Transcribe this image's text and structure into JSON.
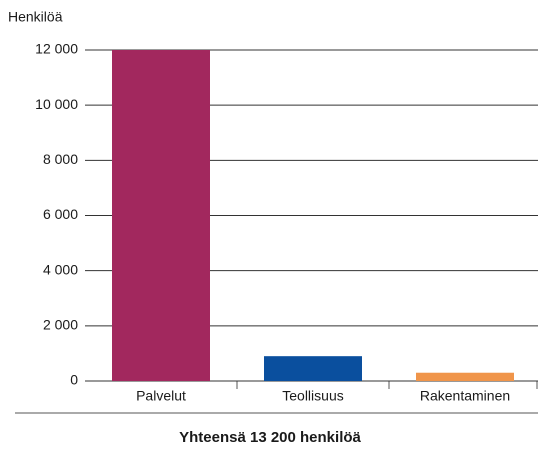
{
  "chart_data": {
    "type": "bar",
    "y_label": "Henkilöä",
    "annotation": "Yhteensä 13 200 henkilöä",
    "categories": [
      "Palvelut",
      "Teollisuus",
      "Rakentaminen"
    ],
    "values": [
      12000,
      900,
      300
    ],
    "colors": [
      "#a2285e",
      "#0a4f9e",
      "#f0954a"
    ],
    "ylim": [
      0,
      12000
    ],
    "yticks": [
      0,
      {
        "value": 2000,
        "label": "2 000"
      },
      {
        "value": 4000,
        "label": "4 000"
      },
      {
        "value": 6000,
        "label": "6 000"
      },
      {
        "value": 8000,
        "label": "8 000"
      },
      {
        "value": 10000,
        "label": "10 000"
      },
      {
        "value": 12000,
        "label": "12 000"
      }
    ],
    "grid": true
  }
}
